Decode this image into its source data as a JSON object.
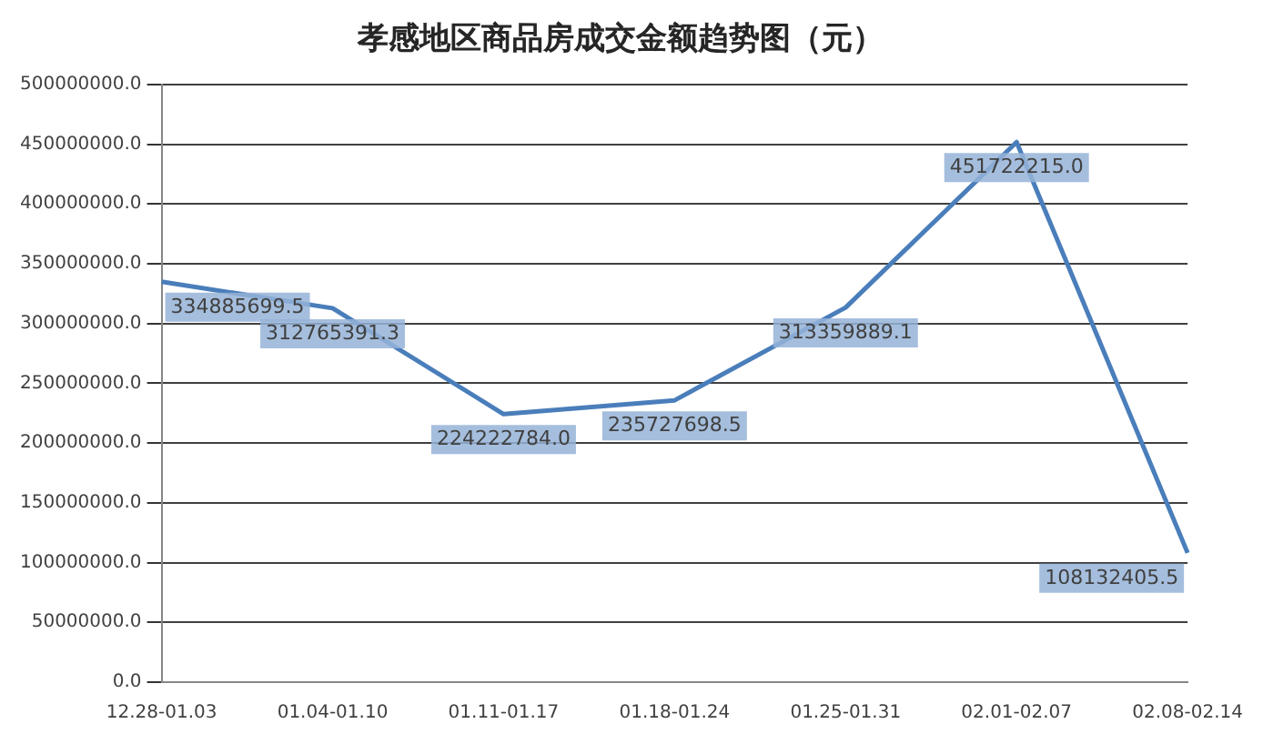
{
  "chart_data": {
    "type": "line",
    "title": "孝感地区商品房成交金额趋势图（元）",
    "categories": [
      "12.28-01.03",
      "01.04-01.10",
      "01.11-01.17",
      "01.18-01.24",
      "01.25-01.31",
      "02.01-02.07",
      "02.08-02.14"
    ],
    "series": [
      {
        "color": "#4a7ebb",
        "values": [
          334885699.5,
          312765391.3,
          224222784.0,
          235727698.5,
          313359889.1,
          451722215.0,
          108132405.5
        ],
        "value_labels": [
          "334885699.5",
          "312765391.3",
          "224222784.0",
          "235727698.5",
          "313359889.1",
          "451722215.0",
          "108132405.5"
        ]
      }
    ],
    "ylim": [
      0,
      500000000
    ],
    "yticks": [
      {
        "value": 0,
        "label": "0.0"
      },
      {
        "value": 50000000,
        "label": "50000000.0"
      },
      {
        "value": 100000000,
        "label": "100000000.0"
      },
      {
        "value": 150000000,
        "label": "150000000.0"
      },
      {
        "value": 200000000,
        "label": "200000000.0"
      },
      {
        "value": 250000000,
        "label": "250000000.0"
      },
      {
        "value": 300000000,
        "label": "300000000.0"
      },
      {
        "value": 350000000,
        "label": "350000000.0"
      },
      {
        "value": 400000000,
        "label": "400000000.0"
      },
      {
        "value": 450000000,
        "label": "450000000.0"
      },
      {
        "value": 500000000,
        "label": "500000000.0"
      }
    ],
    "grid": "y",
    "legend": false,
    "marker": "none",
    "line_style": "solid"
  }
}
